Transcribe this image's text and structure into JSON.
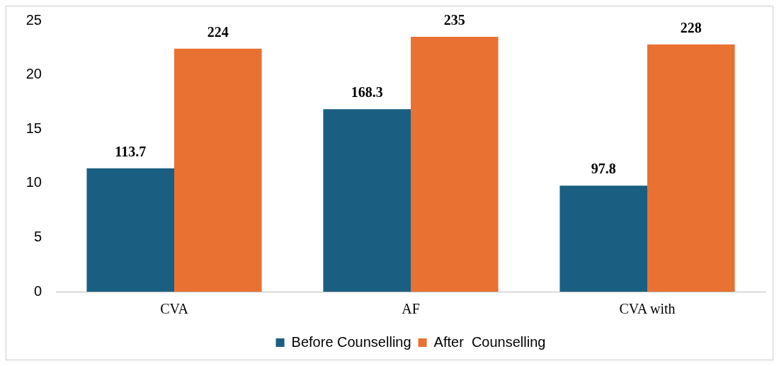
{
  "chart_data": {
    "type": "bar",
    "categories": [
      "CVA",
      "AF",
      "CVA with"
    ],
    "series": [
      {
        "name": "Before Counselling",
        "color": "#1a5f82",
        "values": [
          113.7,
          168.3,
          97.8
        ]
      },
      {
        "name": "After  Counselling",
        "color": "#e97132",
        "values": [
          224,
          235,
          228
        ]
      }
    ],
    "annotations": [
      "25",
      "20",
      "15",
      "10",
      "5",
      "0"
    ],
    "data_labels": true,
    "grid": false,
    "legend": "bottom"
  }
}
